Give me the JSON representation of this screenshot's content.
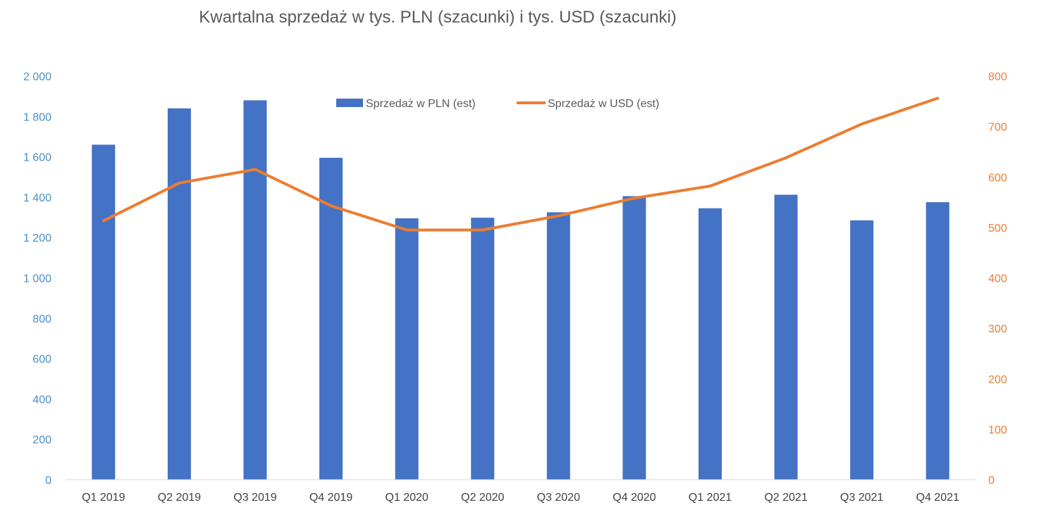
{
  "chart_data": {
    "type": "bar",
    "title": "Kwartalna sprzedaż w tys. PLN (szacunki) i tys. USD (szacunki)",
    "categories": [
      "Q1 2019",
      "Q2 2019",
      "Q3 2019",
      "Q4 2019",
      "Q1 2020",
      "Q2 2020",
      "Q3 2020",
      "Q4 2020",
      "Q1 2021",
      "Q2 2021",
      "Q3 2021",
      "Q4 2021"
    ],
    "series": [
      {
        "name": "Sprzedaż w PLN (est)",
        "type": "bar",
        "axis": "left",
        "color": "#4472c4",
        "values": [
          1660,
          1840,
          1880,
          1595,
          1295,
          1298,
          1325,
          1405,
          1345,
          1412,
          1285,
          1375
        ]
      },
      {
        "name": "Sprzedaż w USD (est)",
        "type": "line",
        "axis": "right",
        "color": "#ed7d31",
        "values": [
          513,
          588,
          615,
          543,
          495,
          495,
          523,
          558,
          582,
          638,
          705,
          756
        ]
      }
    ],
    "y_left": {
      "ylim": [
        0,
        2000
      ],
      "ticks": [
        0,
        200,
        400,
        600,
        800,
        1000,
        1200,
        1400,
        1600,
        1800,
        2000
      ],
      "tick_labels": [
        "0",
        "200",
        "400",
        "600",
        "800",
        "1 000",
        "1 200",
        "1 400",
        "1 600",
        "1 800",
        "2 000"
      ],
      "color": "#4a8fc7"
    },
    "y_right": {
      "ylim": [
        0,
        800
      ],
      "ticks": [
        0,
        100,
        200,
        300,
        400,
        500,
        600,
        700,
        800
      ],
      "tick_labels": [
        "0",
        "100",
        "200",
        "300",
        "400",
        "500",
        "600",
        "700",
        "800"
      ],
      "color": "#ed7d31"
    },
    "xlabel": "",
    "ylabel": "",
    "grid": false,
    "legend_position": "top-center"
  }
}
